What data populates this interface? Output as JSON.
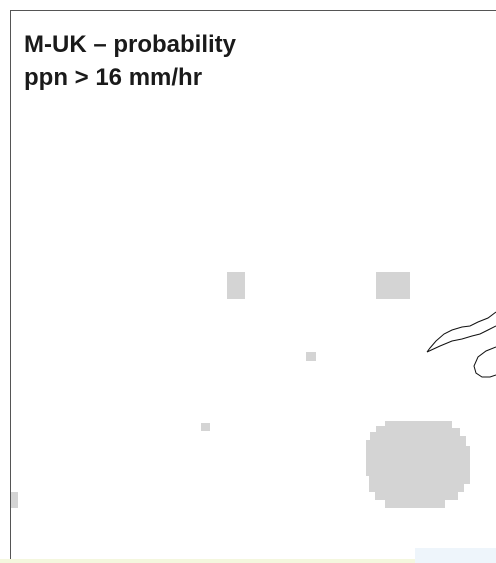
{
  "title": {
    "line1": "M-UK – probability",
    "line2": "ppn > 16 mm/hr"
  }
}
